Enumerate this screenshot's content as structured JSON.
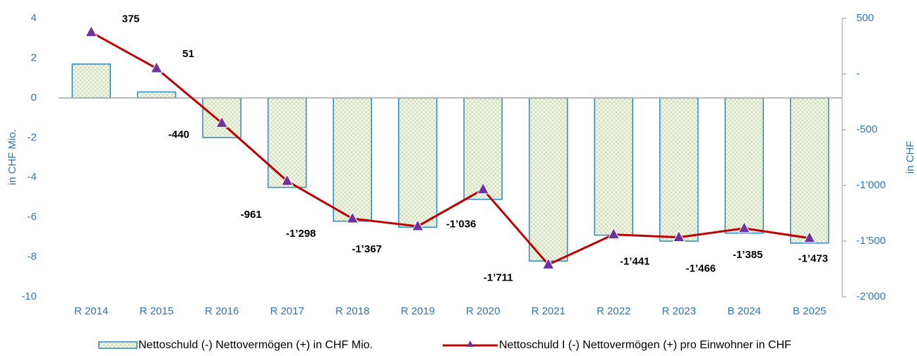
{
  "chart_data": {
    "type": "bar-line",
    "ylabel": "in CHF Mio.",
    "y2label": "in CHF",
    "categories": [
      "R 2014",
      "R 2015",
      "R 2016",
      "R 2017",
      "R 2018",
      "R 2019",
      "R 2020",
      "R 2021",
      "R 2022",
      "R 2023",
      "B 2024",
      "B 2025"
    ],
    "series": [
      {
        "name": "Nettoschuld (-) Nettovermögen (+) in CHF Mio.",
        "type": "bar",
        "color": "#2e8bc9",
        "values": [
          1.7,
          0.3,
          -2.0,
          -4.5,
          -6.2,
          -6.5,
          -5.1,
          -8.2,
          -6.9,
          -7.2,
          -6.8,
          -7.3
        ]
      },
      {
        "name": "Nettoschuld I (-) Nettovermögen (+) pro Einwohner in CHF",
        "type": "line",
        "axis": "y2",
        "color": "#c00000",
        "marker_color": "#7030a0",
        "values": [
          375,
          51,
          -440,
          -961,
          -1298,
          -1367,
          -1036,
          -1711,
          -1441,
          -1466,
          -1385,
          -1473
        ],
        "value_labels": [
          "375",
          "51",
          "-440",
          "-961",
          "-1’298",
          "-1’367",
          "-1’036",
          "-1’711",
          "-1’441",
          "-1’466",
          "-1’385",
          "-1’473"
        ]
      }
    ],
    "ylim": [
      -10,
      4
    ],
    "yticks": [
      -10,
      -8,
      -6,
      -4,
      -2,
      0,
      2,
      4
    ],
    "y2lim": [
      -2000,
      500
    ],
    "y2ticks": [
      {
        "value": -2000,
        "label": "-2’000"
      },
      {
        "value": -1500,
        "label": "-1’500"
      },
      {
        "value": -1000,
        "label": "-1’000"
      },
      -500,
      {
        "value": 0,
        "label": "-"
      },
      500
    ],
    "legend": "bottom"
  }
}
